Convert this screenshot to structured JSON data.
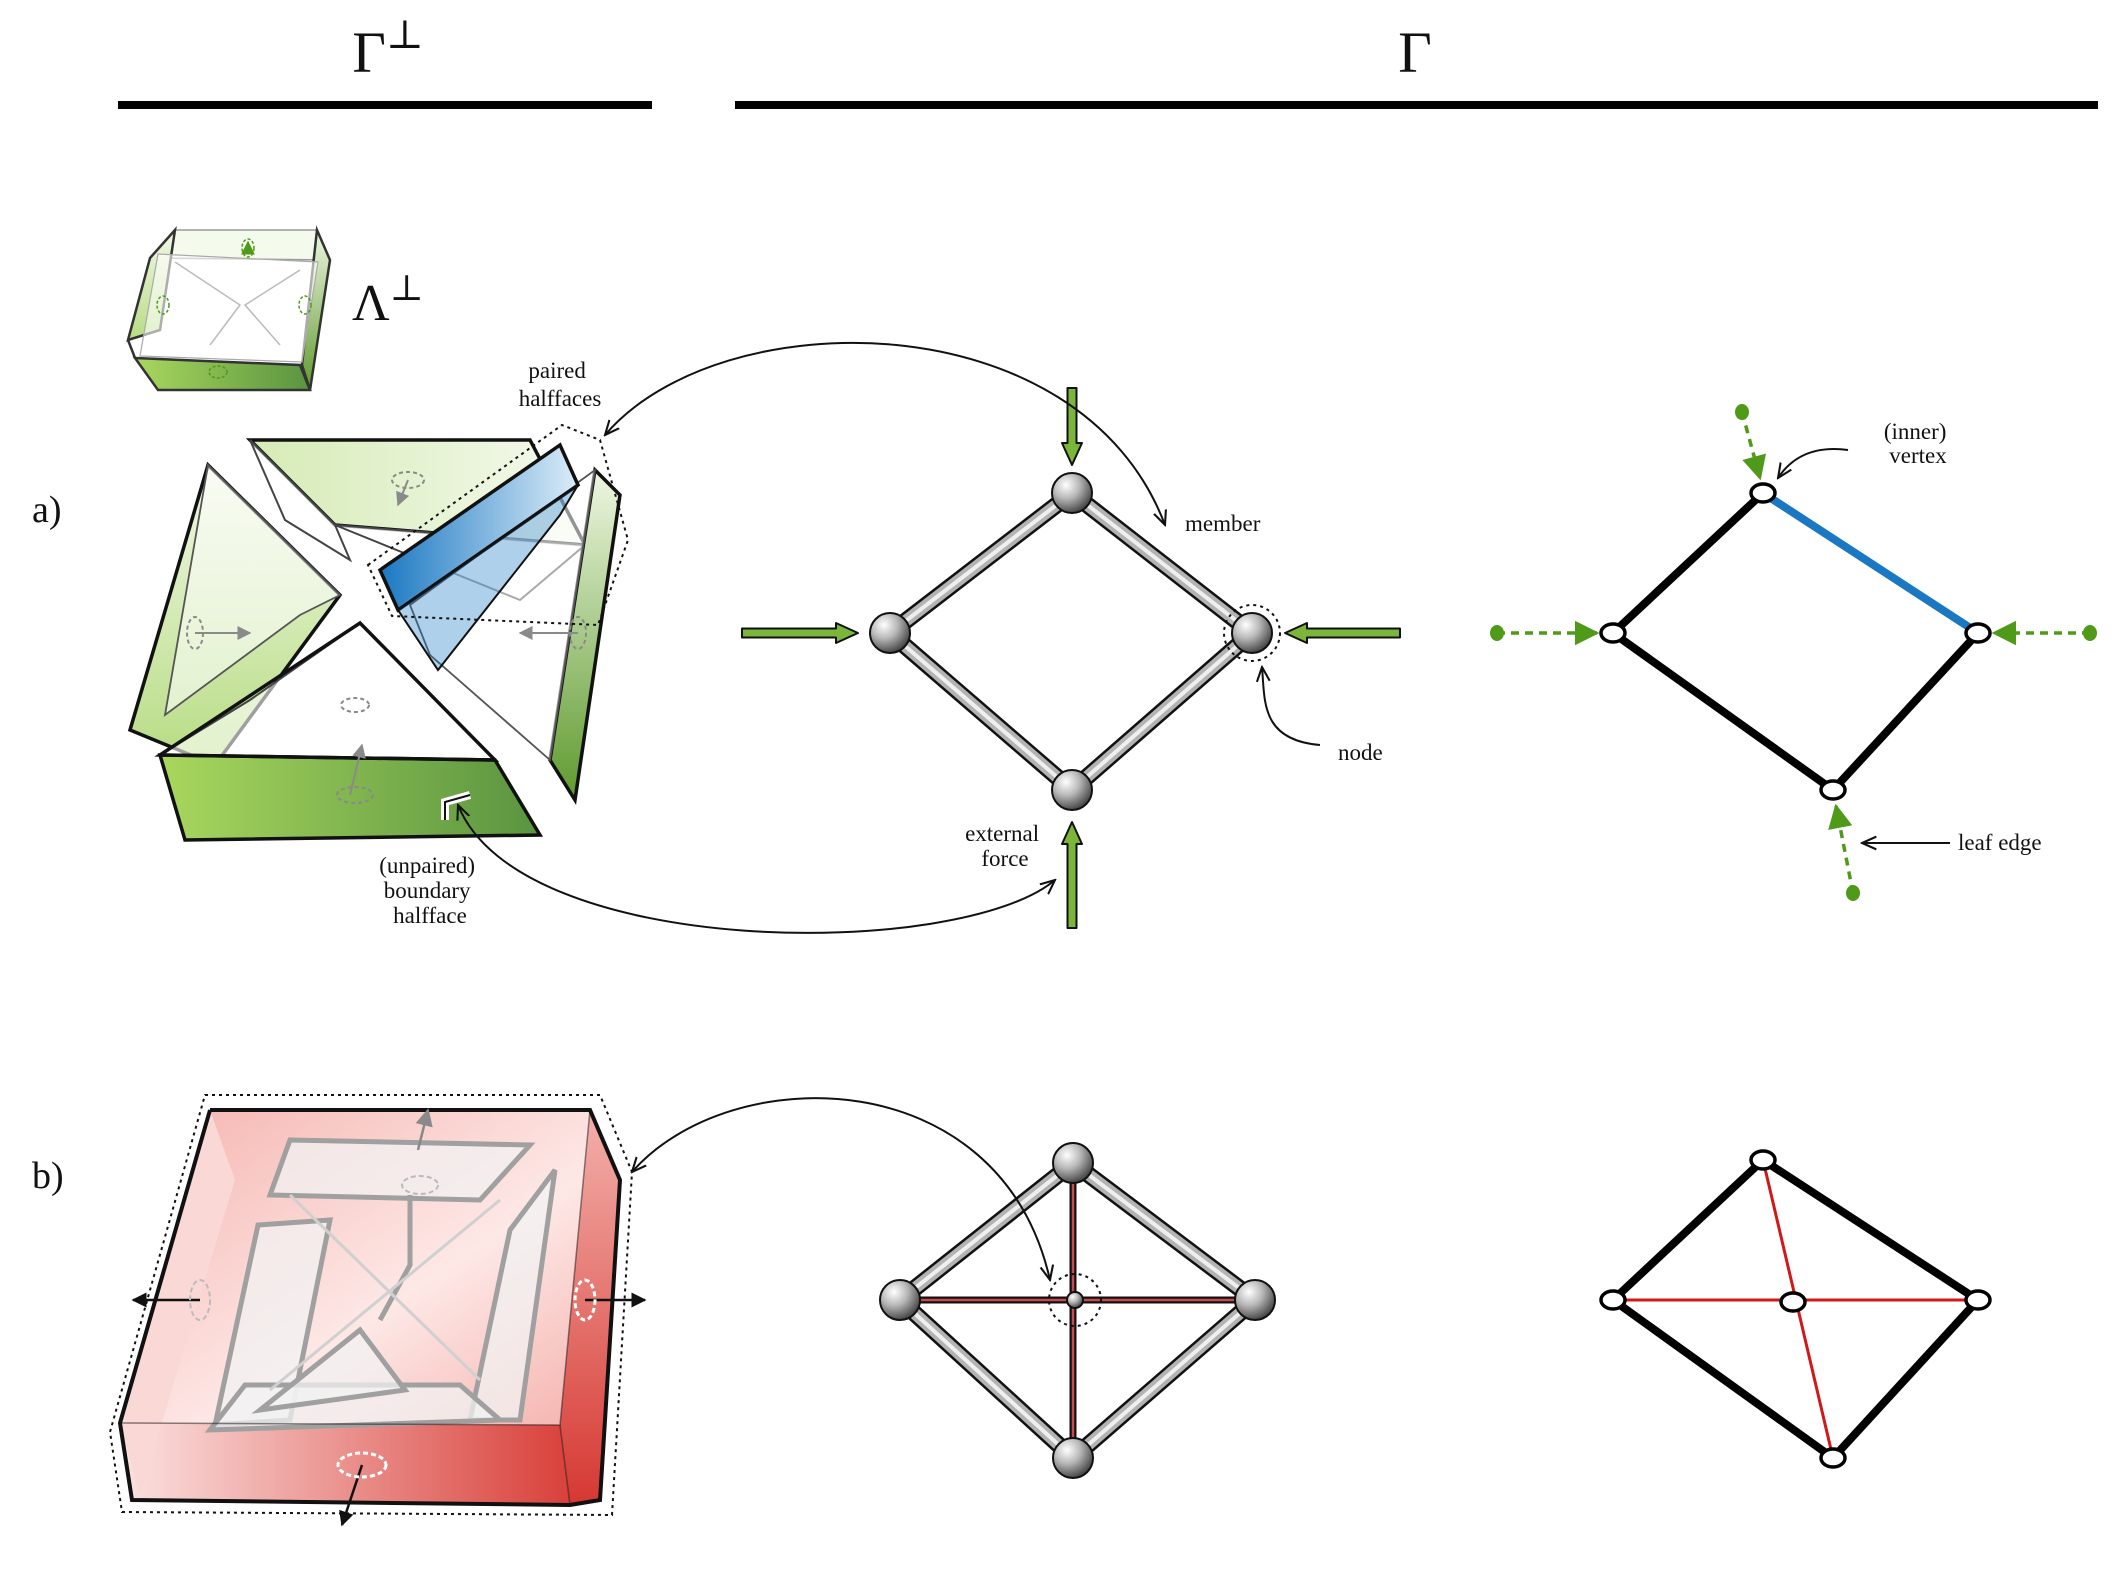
{
  "header": {
    "left_title": "Γ",
    "left_title_sup": "⊥",
    "right_title": "Γ"
  },
  "lambda_label": {
    "base": "Λ",
    "sup": "⊥"
  },
  "row_labels": {
    "a": "a)",
    "b": "b)"
  },
  "annotations": {
    "paired_halffaces": [
      "paired",
      "halffaces"
    ],
    "member": "member",
    "node": "node",
    "external_force": [
      "external",
      "force"
    ],
    "unpaired_boundary_halfface": [
      "(unpaired)",
      "boundary",
      "halfface"
    ],
    "inner_vertex": [
      "(inner)",
      "vertex"
    ],
    "leaf_edge": "leaf edge"
  },
  "colors": {
    "green": "#4f9a19",
    "green_light": "#cde7a6",
    "blue": "#1a78c2",
    "red": "#d01818",
    "red_light": "#f7c9c6",
    "metal": "#b3b3b3",
    "black": "#000000"
  }
}
